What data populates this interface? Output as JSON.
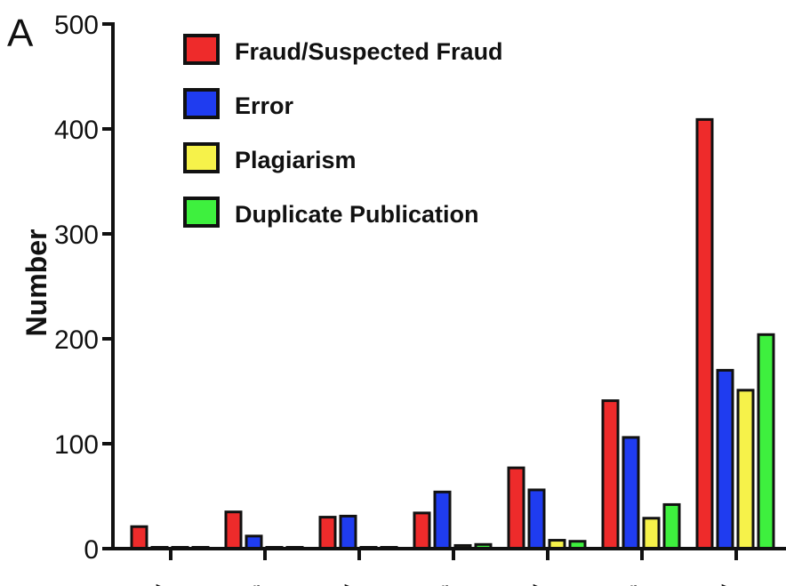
{
  "panel_label": "A",
  "colors": {
    "fraud": "#ee2b2b",
    "error": "#1f3cf0",
    "plagiarism": "#f6f24a",
    "duplicate": "#3ef03e",
    "axis": "#111111"
  },
  "chart_data": {
    "type": "bar",
    "title": "",
    "xlabel": "",
    "ylabel": "Number",
    "ylim": [
      0,
      500
    ],
    "yticks": [
      0,
      100,
      200,
      300,
      400,
      500
    ],
    "categories": [
      "",
      "",
      "",
      "",
      "",
      "",
      ""
    ],
    "category_tick_labels": [
      ">",
      "r",
      ">",
      "r",
      ">",
      "r",
      ">"
    ],
    "legend_position": "top-left",
    "grid": false,
    "series": [
      {
        "name": "Fraud/Suspected Fraud",
        "color": "#ee2b2b",
        "values": [
          21,
          35,
          30,
          34,
          77,
          141,
          409
        ]
      },
      {
        "name": "Error",
        "color": "#1f3cf0",
        "values": [
          1,
          12,
          31,
          54,
          56,
          106,
          170
        ]
      },
      {
        "name": "Plagiarism",
        "color": "#f6f24a",
        "values": [
          0,
          0,
          1,
          3,
          8,
          29,
          151
        ]
      },
      {
        "name": "Duplicate Publication",
        "color": "#3ef03e",
        "values": [
          0,
          0,
          1,
          4,
          7,
          42,
          204
        ]
      }
    ]
  }
}
